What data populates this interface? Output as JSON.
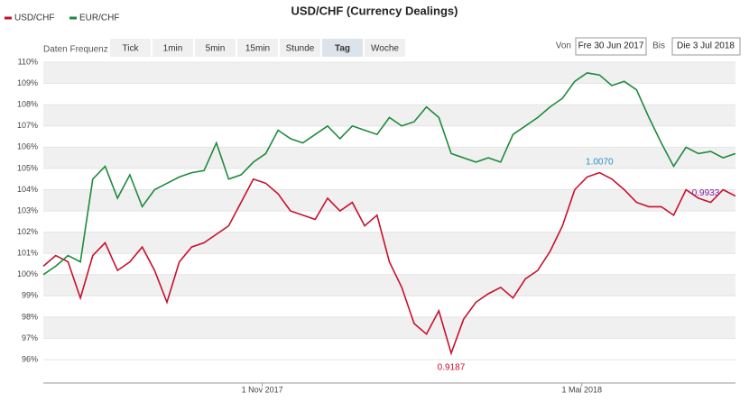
{
  "ui": {
    "frequency_label": "Daten Frequenz",
    "buttons": [
      "Tick",
      "1min",
      "5min",
      "15min",
      "Stunde",
      "Tag",
      "Woche"
    ],
    "active": "Tag",
    "from_label": "Von",
    "from": "Fre 30 Jun 2017",
    "to_label": "Bis",
    "to": "Die 3 Jul 2018"
  },
  "chart_data": {
    "type": "line",
    "title": "USD/CHF (Currency Dealings)",
    "x": [
      "2017-06-30",
      "2017-07-07",
      "2017-07-14",
      "2017-07-21",
      "2017-07-28",
      "2017-08-04",
      "2017-08-11",
      "2017-08-18",
      "2017-08-25",
      "2017-09-01",
      "2017-09-08",
      "2017-09-15",
      "2017-09-22",
      "2017-09-29",
      "2017-10-06",
      "2017-10-13",
      "2017-10-20",
      "2017-10-27",
      "2017-11-03",
      "2017-11-10",
      "2017-11-17",
      "2017-11-24",
      "2017-12-01",
      "2017-12-08",
      "2017-12-15",
      "2017-12-22",
      "2017-12-29",
      "2018-01-05",
      "2018-01-12",
      "2018-01-19",
      "2018-01-26",
      "2018-02-02",
      "2018-02-09",
      "2018-02-16",
      "2018-02-23",
      "2018-03-02",
      "2018-03-09",
      "2018-03-16",
      "2018-03-23",
      "2018-03-30",
      "2018-04-06",
      "2018-04-13",
      "2018-04-20",
      "2018-04-27",
      "2018-05-04",
      "2018-05-11",
      "2018-05-18",
      "2018-05-25",
      "2018-06-01",
      "2018-06-08",
      "2018-06-15",
      "2018-06-22",
      "2018-06-29",
      "2018-07-06",
      "2018-07-13",
      "2018-07-20",
      "2018-07-27"
    ],
    "series": [
      {
        "name": "USD/CHF",
        "color": "#c8102e",
        "values": [
          100.4,
          100.9,
          100.6,
          98.9,
          100.9,
          101.5,
          100.2,
          100.6,
          101.3,
          100.2,
          98.7,
          100.6,
          101.3,
          101.5,
          101.9,
          102.3,
          103.4,
          104.5,
          104.3,
          103.8,
          103.0,
          102.8,
          102.6,
          103.6,
          103.0,
          103.4,
          102.3,
          102.8,
          100.6,
          99.4,
          97.7,
          97.2,
          98.3,
          96.3,
          97.9,
          98.7,
          99.1,
          99.4,
          98.9,
          99.8,
          100.2,
          101.1,
          102.3,
          104.0,
          104.6,
          104.8,
          104.5,
          104.0,
          103.4,
          103.2,
          103.2,
          102.8,
          104.0,
          103.6,
          103.4,
          104.0,
          103.7
        ]
      },
      {
        "name": "EUR/CHF",
        "color": "#1e8a3c",
        "values": [
          100.0,
          100.4,
          100.9,
          100.6,
          104.5,
          105.1,
          103.6,
          104.7,
          103.2,
          104.0,
          104.3,
          104.6,
          104.8,
          104.9,
          106.2,
          104.5,
          104.7,
          105.3,
          105.7,
          106.8,
          106.4,
          106.2,
          106.6,
          107.0,
          106.4,
          107.0,
          106.8,
          106.6,
          107.4,
          107.0,
          107.2,
          107.9,
          107.4,
          105.7,
          105.5,
          105.3,
          105.5,
          105.3,
          106.6,
          107.0,
          107.4,
          107.9,
          108.3,
          109.1,
          109.5,
          109.4,
          108.9,
          109.1,
          108.7,
          107.4,
          106.2,
          105.1,
          106.0,
          105.7,
          105.8,
          105.5,
          105.7
        ]
      }
    ],
    "annotations": [
      {
        "text": "1.0070",
        "x": "2018-05-11",
        "y": 104.8,
        "color": "#2a8fc0",
        "position": "above"
      },
      {
        "text": "0.9187",
        "x": "2018-02-16",
        "y": 96.3,
        "color": "#c8102e",
        "position": "below"
      },
      {
        "text": "0.9933",
        "x": "2018-07-20",
        "y": 103.7,
        "color": "#8a1ea8",
        "position": "left"
      }
    ],
    "xlim": [
      "2017-06-30",
      "2018-07-27"
    ],
    "xticks": [
      {
        "value": "2017-11-01",
        "label": "1 Nov 2017"
      },
      {
        "value": "2018-05-01",
        "label": "1 Mai 2018"
      }
    ],
    "ylim": [
      94.9,
      110.3
    ],
    "yticks": [
      {
        "value": 96,
        "label": "96%"
      },
      {
        "value": 97,
        "label": "97%"
      },
      {
        "value": 98,
        "label": "98%"
      },
      {
        "value": 99,
        "label": "99%"
      },
      {
        "value": 100,
        "label": "100%"
      },
      {
        "value": 101,
        "label": "101%"
      },
      {
        "value": 102,
        "label": "102%"
      },
      {
        "value": 103,
        "label": "103%"
      },
      {
        "value": 104,
        "label": "104%"
      },
      {
        "value": 105,
        "label": "105%"
      },
      {
        "value": 106,
        "label": "106%"
      },
      {
        "value": 107,
        "label": "107%"
      },
      {
        "value": 108,
        "label": "108%"
      },
      {
        "value": 109,
        "label": "109%"
      },
      {
        "value": 110,
        "label": "110%"
      }
    ],
    "grid": true,
    "legend": "top-left"
  }
}
